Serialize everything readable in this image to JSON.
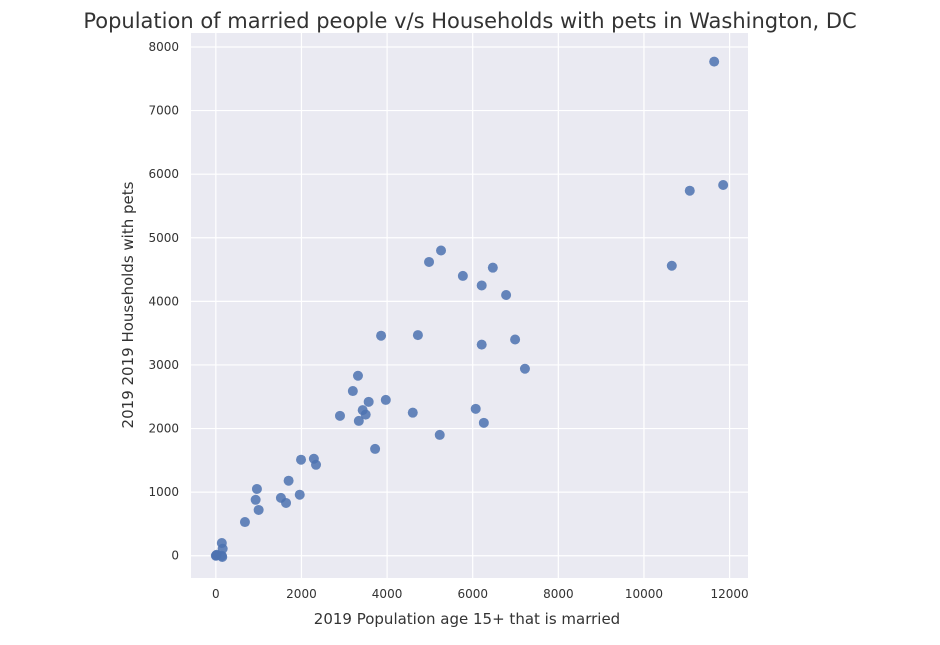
{
  "chart_data": {
    "type": "scatter",
    "title": "Population of married people v/s Households with pets in Washington, DC",
    "xlabel": "2019 Population age 15+ that is married",
    "ylabel": "2019 2019 Households with pets",
    "xlim": [
      -580,
      12430
    ],
    "ylim": [
      -350,
      8220
    ],
    "xticks": [
      0,
      2000,
      4000,
      6000,
      8000,
      10000,
      12000
    ],
    "yticks": [
      0,
      1000,
      2000,
      3000,
      4000,
      5000,
      6000,
      7000,
      8000
    ],
    "grid": true,
    "colors": {
      "point": "#4c72b0",
      "background": "#eaeaf2",
      "grid": "#ffffff"
    },
    "points": [
      [
        0,
        0
      ],
      [
        20,
        15
      ],
      [
        10,
        5
      ],
      [
        140,
        0
      ],
      [
        160,
        110
      ],
      [
        140,
        200
      ],
      [
        150,
        -20
      ],
      [
        680,
        530
      ],
      [
        960,
        1050
      ],
      [
        930,
        880
      ],
      [
        1000,
        720
      ],
      [
        1520,
        910
      ],
      [
        1640,
        830
      ],
      [
        1700,
        1180
      ],
      [
        1960,
        960
      ],
      [
        1990,
        1510
      ],
      [
        2290,
        1525
      ],
      [
        2340,
        1430
      ],
      [
        2900,
        2200
      ],
      [
        3200,
        2590
      ],
      [
        3320,
        2830
      ],
      [
        3340,
        2120
      ],
      [
        3430,
        2290
      ],
      [
        3500,
        2220
      ],
      [
        3570,
        2420
      ],
      [
        3720,
        1680
      ],
      [
        3860,
        3460
      ],
      [
        3970,
        2450
      ],
      [
        4600,
        2250
      ],
      [
        4720,
        3470
      ],
      [
        4980,
        4620
      ],
      [
        5260,
        4800
      ],
      [
        5230,
        1900
      ],
      [
        5770,
        4400
      ],
      [
        6070,
        2310
      ],
      [
        6210,
        4250
      ],
      [
        6210,
        3320
      ],
      [
        6260,
        2090
      ],
      [
        6470,
        4530
      ],
      [
        6780,
        4100
      ],
      [
        6990,
        3400
      ],
      [
        7220,
        2940
      ],
      [
        10650,
        4560
      ],
      [
        11070,
        5740
      ],
      [
        11640,
        7770
      ],
      [
        11850,
        5830
      ]
    ]
  }
}
